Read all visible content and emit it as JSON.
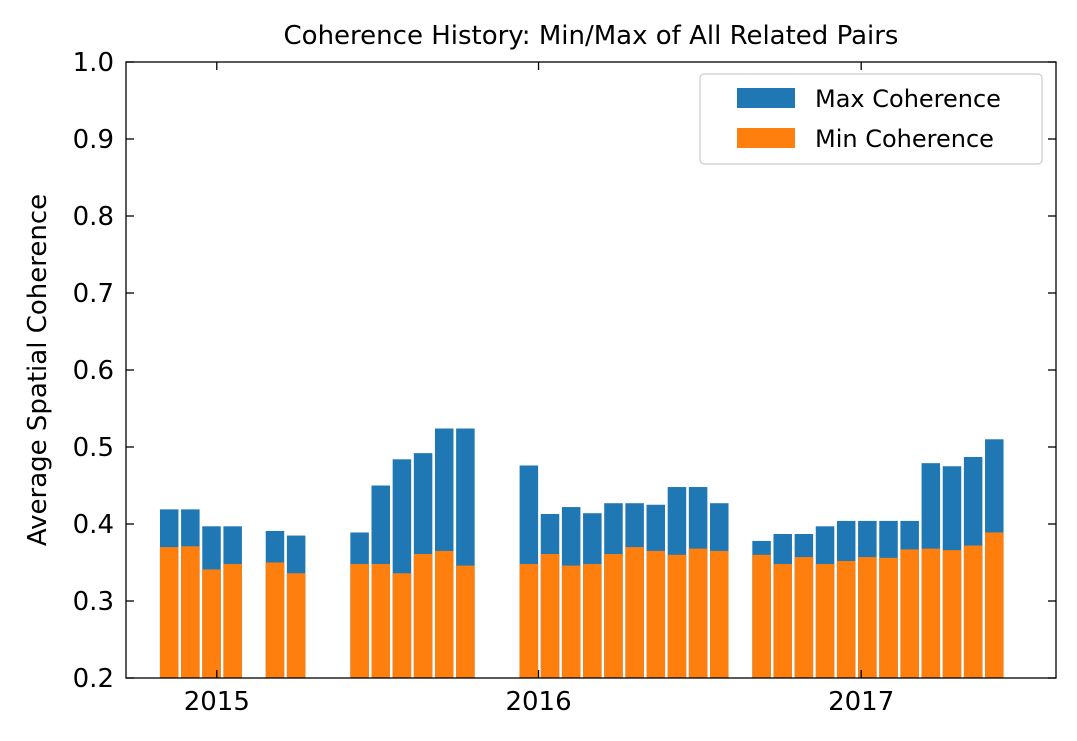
{
  "chart_data": {
    "type": "bar",
    "title": "Coherence History: Min/Max of All Related Pairs",
    "xlabel": "",
    "ylabel": "Average Spatial Coherence",
    "ylim": [
      0.2,
      1.0
    ],
    "xlim": [
      "2014-09-20",
      "2017-08-10"
    ],
    "yticks": [
      "0.2",
      "0.3",
      "0.4",
      "0.5",
      "0.6",
      "0.7",
      "0.8",
      "0.9",
      "1.0"
    ],
    "xticks": [
      {
        "label": "2015",
        "date": "2015-01-01"
      },
      {
        "label": "2016",
        "date": "2016-01-01"
      },
      {
        "label": "2017",
        "date": "2017-01-01"
      }
    ],
    "legend_position": "top-right",
    "colors": {
      "max": "#1f77b4",
      "min": "#ff7f0e"
    },
    "series": [
      {
        "name": "Max Coherence",
        "color": "#1f77b4",
        "points": [
          {
            "x": "2014-11-08",
            "y": 0.419
          },
          {
            "x": "2014-12-02",
            "y": 0.419
          },
          {
            "x": "2014-12-26",
            "y": 0.397
          },
          {
            "x": "2015-01-19",
            "y": 0.397
          },
          {
            "x": "2015-03-08",
            "y": 0.391
          },
          {
            "x": "2015-04-01",
            "y": 0.385
          },
          {
            "x": "2015-06-12",
            "y": 0.389
          },
          {
            "x": "2015-07-06",
            "y": 0.45
          },
          {
            "x": "2015-07-30",
            "y": 0.484
          },
          {
            "x": "2015-08-23",
            "y": 0.492
          },
          {
            "x": "2015-09-16",
            "y": 0.524
          },
          {
            "x": "2015-10-10",
            "y": 0.524
          },
          {
            "x": "2015-12-21",
            "y": 0.476
          },
          {
            "x": "2016-01-14",
            "y": 0.413
          },
          {
            "x": "2016-02-07",
            "y": 0.422
          },
          {
            "x": "2016-03-02",
            "y": 0.414
          },
          {
            "x": "2016-03-26",
            "y": 0.427
          },
          {
            "x": "2016-04-19",
            "y": 0.427
          },
          {
            "x": "2016-05-13",
            "y": 0.425
          },
          {
            "x": "2016-06-06",
            "y": 0.448
          },
          {
            "x": "2016-06-30",
            "y": 0.448
          },
          {
            "x": "2016-07-24",
            "y": 0.427
          },
          {
            "x": "2016-09-10",
            "y": 0.378
          },
          {
            "x": "2016-10-04",
            "y": 0.387
          },
          {
            "x": "2016-10-28",
            "y": 0.387
          },
          {
            "x": "2016-11-21",
            "y": 0.397
          },
          {
            "x": "2016-12-15",
            "y": 0.404
          },
          {
            "x": "2017-01-08",
            "y": 0.404
          },
          {
            "x": "2017-02-01",
            "y": 0.404
          },
          {
            "x": "2017-02-25",
            "y": 0.404
          },
          {
            "x": "2017-03-21",
            "y": 0.479
          },
          {
            "x": "2017-04-14",
            "y": 0.475
          },
          {
            "x": "2017-05-08",
            "y": 0.487
          },
          {
            "x": "2017-06-01",
            "y": 0.51
          }
        ]
      },
      {
        "name": "Min Coherence",
        "color": "#ff7f0e",
        "points": [
          {
            "x": "2014-11-08",
            "y": 0.37
          },
          {
            "x": "2014-12-02",
            "y": 0.371
          },
          {
            "x": "2014-12-26",
            "y": 0.341
          },
          {
            "x": "2015-01-19",
            "y": 0.348
          },
          {
            "x": "2015-03-08",
            "y": 0.35
          },
          {
            "x": "2015-04-01",
            "y": 0.336
          },
          {
            "x": "2015-06-12",
            "y": 0.348
          },
          {
            "x": "2015-07-06",
            "y": 0.348
          },
          {
            "x": "2015-07-30",
            "y": 0.336
          },
          {
            "x": "2015-08-23",
            "y": 0.361
          },
          {
            "x": "2015-09-16",
            "y": 0.365
          },
          {
            "x": "2015-10-10",
            "y": 0.346
          },
          {
            "x": "2015-12-21",
            "y": 0.348
          },
          {
            "x": "2016-01-14",
            "y": 0.361
          },
          {
            "x": "2016-02-07",
            "y": 0.346
          },
          {
            "x": "2016-03-02",
            "y": 0.348
          },
          {
            "x": "2016-03-26",
            "y": 0.361
          },
          {
            "x": "2016-04-19",
            "y": 0.37
          },
          {
            "x": "2016-05-13",
            "y": 0.365
          },
          {
            "x": "2016-06-06",
            "y": 0.36
          },
          {
            "x": "2016-06-30",
            "y": 0.368
          },
          {
            "x": "2016-07-24",
            "y": 0.365
          },
          {
            "x": "2016-09-10",
            "y": 0.36
          },
          {
            "x": "2016-10-04",
            "y": 0.348
          },
          {
            "x": "2016-10-28",
            "y": 0.357
          },
          {
            "x": "2016-11-21",
            "y": 0.348
          },
          {
            "x": "2016-12-15",
            "y": 0.352
          },
          {
            "x": "2017-01-08",
            "y": 0.357
          },
          {
            "x": "2017-02-01",
            "y": 0.356
          },
          {
            "x": "2017-02-25",
            "y": 0.367
          },
          {
            "x": "2017-03-21",
            "y": 0.368
          },
          {
            "x": "2017-04-14",
            "y": 0.366
          },
          {
            "x": "2017-05-08",
            "y": 0.372
          },
          {
            "x": "2017-06-01",
            "y": 0.389
          }
        ]
      }
    ]
  }
}
